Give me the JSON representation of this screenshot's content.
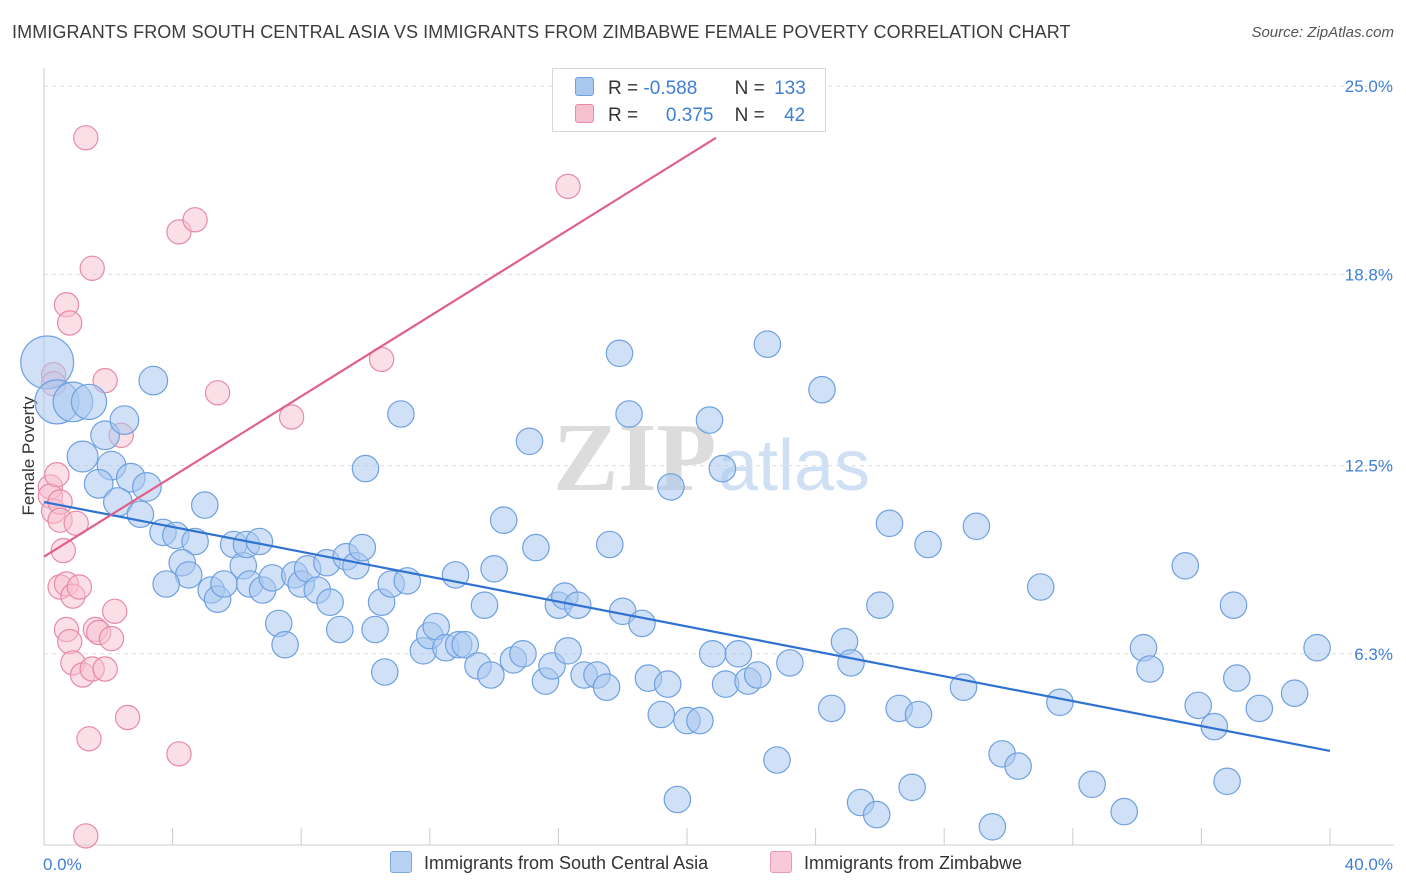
{
  "header": {
    "title": "IMMIGRANTS FROM SOUTH CENTRAL ASIA VS IMMIGRANTS FROM ZIMBABWE FEMALE POVERTY CORRELATION CHART",
    "source": "Source: ZipAtlas.com"
  },
  "watermark": {
    "zip": "ZIP",
    "atlas": "atlas"
  },
  "legend": {
    "r_label": "R =",
    "n_label": "N =",
    "series": [
      {
        "r": "-0.588",
        "n": "133",
        "color": "#a9c8f0",
        "border": "#6fa0e0"
      },
      {
        "r": "0.375",
        "n": "42",
        "color": "#f7c0d0",
        "border": "#e88aa8"
      }
    ]
  },
  "bottom_legend": [
    {
      "label": "Immigrants from South Central Asia",
      "color": "#b8d2f4",
      "border": "#7aa6e0"
    },
    {
      "label": "Immigrants from Zimbabwe",
      "color": "#f8cad8",
      "border": "#e89ab4"
    }
  ],
  "chart_data": {
    "type": "scatter",
    "ylabel": "Female Poverty",
    "x_tick_labels": [
      "0.0%",
      "40.0%"
    ],
    "y_tick_labels": [
      "25.0%",
      "18.8%",
      "12.5%",
      "6.3%"
    ],
    "y_ticks": [
      25.0,
      18.8,
      12.5,
      6.3
    ],
    "xlim": [
      0,
      40
    ],
    "ylim": [
      0,
      25.6
    ],
    "grid": true,
    "series": [
      {
        "name": "Immigrants from South Central Asia",
        "color": "#a9c8f0",
        "stroke": "#6fa0e0",
        "trend": {
          "x": [
            0,
            40
          ],
          "y": [
            11.3,
            3.1
          ],
          "color": "#2f72d0"
        },
        "points": [
          [
            0.1,
            15.9,
            2.4
          ],
          [
            0.4,
            14.6,
            2.0
          ],
          [
            0.9,
            14.6,
            1.8
          ],
          [
            1.4,
            14.6,
            1.6
          ],
          [
            3.4,
            15.3,
            1.3
          ],
          [
            1.9,
            13.5,
            1.3
          ],
          [
            2.5,
            14.0,
            1.3
          ],
          [
            1.2,
            12.8,
            1.4
          ],
          [
            2.1,
            12.5,
            1.3
          ],
          [
            1.7,
            11.9,
            1.3
          ],
          [
            2.7,
            12.1,
            1.3
          ],
          [
            3.2,
            11.8,
            1.3
          ],
          [
            2.3,
            11.3,
            1.3
          ],
          [
            3.0,
            10.9,
            1.2
          ],
          [
            3.7,
            10.3,
            1.2
          ],
          [
            4.1,
            10.2,
            1.2
          ],
          [
            4.7,
            10.0,
            1.2
          ],
          [
            5.0,
            11.2,
            1.2
          ],
          [
            4.3,
            9.3,
            1.2
          ],
          [
            4.5,
            8.9,
            1.2
          ],
          [
            3.8,
            8.6,
            1.2
          ],
          [
            5.2,
            8.4,
            1.2
          ],
          [
            5.4,
            8.1,
            1.2
          ],
          [
            5.6,
            8.6,
            1.2
          ],
          [
            5.9,
            9.9,
            1.2
          ],
          [
            6.2,
            9.2,
            1.2
          ],
          [
            6.3,
            9.9,
            1.2
          ],
          [
            6.7,
            10.0,
            1.2
          ],
          [
            6.4,
            8.6,
            1.2
          ],
          [
            6.8,
            8.4,
            1.2
          ],
          [
            7.1,
            8.8,
            1.2
          ],
          [
            7.3,
            7.3,
            1.2
          ],
          [
            7.5,
            6.6,
            1.2
          ],
          [
            7.8,
            8.9,
            1.2
          ],
          [
            8.0,
            8.6,
            1.2
          ],
          [
            8.2,
            9.1,
            1.2
          ],
          [
            8.5,
            8.4,
            1.2
          ],
          [
            8.8,
            9.3,
            1.2
          ],
          [
            8.9,
            8.0,
            1.2
          ],
          [
            9.2,
            7.1,
            1.2
          ],
          [
            9.4,
            9.5,
            1.2
          ],
          [
            9.7,
            9.2,
            1.2
          ],
          [
            9.9,
            9.8,
            1.2
          ],
          [
            10.0,
            12.4,
            1.2
          ],
          [
            10.3,
            7.1,
            1.2
          ],
          [
            10.5,
            8.0,
            1.2
          ],
          [
            10.6,
            5.7,
            1.2
          ],
          [
            10.8,
            8.6,
            1.2
          ],
          [
            11.1,
            14.2,
            1.2
          ],
          [
            11.3,
            8.7,
            1.2
          ],
          [
            11.8,
            6.4,
            1.2
          ],
          [
            12.0,
            6.9,
            1.2
          ],
          [
            12.2,
            7.2,
            1.2
          ],
          [
            12.5,
            6.5,
            1.2
          ],
          [
            12.8,
            8.9,
            1.2
          ],
          [
            12.9,
            6.6,
            1.2
          ],
          [
            13.1,
            6.6,
            1.2
          ],
          [
            13.5,
            5.9,
            1.2
          ],
          [
            13.9,
            5.6,
            1.2
          ],
          [
            13.7,
            7.9,
            1.2
          ],
          [
            14.0,
            9.1,
            1.2
          ],
          [
            14.3,
            10.7,
            1.2
          ],
          [
            14.6,
            6.1,
            1.2
          ],
          [
            14.9,
            6.3,
            1.2
          ],
          [
            15.1,
            13.3,
            1.2
          ],
          [
            15.3,
            9.8,
            1.2
          ],
          [
            15.6,
            5.4,
            1.2
          ],
          [
            15.8,
            5.9,
            1.2
          ],
          [
            16.0,
            7.9,
            1.2
          ],
          [
            16.2,
            8.2,
            1.2
          ],
          [
            16.3,
            6.4,
            1.2
          ],
          [
            16.6,
            7.9,
            1.2
          ],
          [
            16.8,
            5.6,
            1.2
          ],
          [
            17.2,
            5.6,
            1.2
          ],
          [
            17.5,
            5.2,
            1.2
          ],
          [
            17.6,
            9.9,
            1.2
          ],
          [
            17.9,
            16.2,
            1.2
          ],
          [
            18.0,
            7.7,
            1.2
          ],
          [
            18.2,
            14.2,
            1.2
          ],
          [
            18.6,
            7.3,
            1.2
          ],
          [
            18.8,
            5.5,
            1.2
          ],
          [
            19.2,
            4.3,
            1.2
          ],
          [
            19.4,
            5.3,
            1.2
          ],
          [
            19.5,
            11.8,
            1.2
          ],
          [
            19.7,
            1.5,
            1.2
          ],
          [
            20.0,
            4.1,
            1.2
          ],
          [
            20.4,
            4.1,
            1.2
          ],
          [
            20.7,
            14.0,
            1.2
          ],
          [
            20.8,
            6.3,
            1.2
          ],
          [
            21.1,
            12.4,
            1.2
          ],
          [
            21.2,
            5.3,
            1.2
          ],
          [
            21.6,
            6.3,
            1.2
          ],
          [
            21.9,
            5.4,
            1.2
          ],
          [
            22.2,
            5.6,
            1.2
          ],
          [
            22.5,
            16.5,
            1.2
          ],
          [
            22.8,
            2.8,
            1.2
          ],
          [
            23.2,
            6.0,
            1.2
          ],
          [
            24.2,
            15.0,
            1.2
          ],
          [
            24.5,
            4.5,
            1.2
          ],
          [
            24.9,
            6.7,
            1.2
          ],
          [
            25.1,
            6.0,
            1.2
          ],
          [
            25.4,
            1.4,
            1.2
          ],
          [
            25.9,
            1.0,
            1.2
          ],
          [
            26.0,
            7.9,
            1.2
          ],
          [
            26.3,
            10.6,
            1.2
          ],
          [
            26.6,
            4.5,
            1.2
          ],
          [
            27.0,
            1.9,
            1.2
          ],
          [
            27.2,
            4.3,
            1.2
          ],
          [
            27.5,
            9.9,
            1.2
          ],
          [
            28.6,
            5.2,
            1.2
          ],
          [
            29.0,
            10.5,
            1.2
          ],
          [
            29.5,
            0.6,
            1.2
          ],
          [
            29.8,
            3.0,
            1.2
          ],
          [
            30.3,
            2.6,
            1.2
          ],
          [
            31.0,
            8.5,
            1.2
          ],
          [
            31.6,
            4.7,
            1.2
          ],
          [
            32.6,
            2.0,
            1.2
          ],
          [
            33.6,
            1.1,
            1.2
          ],
          [
            34.2,
            6.5,
            1.2
          ],
          [
            34.4,
            5.8,
            1.2
          ],
          [
            35.5,
            9.2,
            1.2
          ],
          [
            35.9,
            4.6,
            1.2
          ],
          [
            36.4,
            3.9,
            1.2
          ],
          [
            36.8,
            2.1,
            1.2
          ],
          [
            37.0,
            7.9,
            1.2
          ],
          [
            37.1,
            5.5,
            1.2
          ],
          [
            37.8,
            4.5,
            1.2
          ],
          [
            38.9,
            5.0,
            1.2
          ],
          [
            39.6,
            6.5,
            1.2
          ]
        ]
      },
      {
        "name": "Immigrants from Zimbabwe",
        "color": "#f7c0d0",
        "stroke": "#e88aa8",
        "trend": {
          "x": [
            0,
            20.9
          ],
          "y": [
            9.5,
            23.3
          ],
          "color": "#e0608a"
        },
        "points": [
          [
            0.3,
            15.5,
            1.1
          ],
          [
            0.3,
            15.2,
            1.1
          ],
          [
            0.2,
            11.8,
            1.1
          ],
          [
            0.2,
            11.5,
            1.1
          ],
          [
            0.3,
            11.0,
            1.1
          ],
          [
            0.4,
            12.2,
            1.1
          ],
          [
            0.5,
            11.3,
            1.1
          ],
          [
            0.5,
            8.5,
            1.1
          ],
          [
            0.5,
            10.7,
            1.1
          ],
          [
            0.6,
            9.7,
            1.1
          ],
          [
            0.7,
            17.8,
            1.1
          ],
          [
            0.8,
            17.2,
            1.1
          ],
          [
            0.7,
            8.6,
            1.1
          ],
          [
            0.7,
            7.1,
            1.1
          ],
          [
            0.8,
            6.7,
            1.1
          ],
          [
            0.9,
            6.0,
            1.1
          ],
          [
            0.9,
            8.2,
            1.1
          ],
          [
            1.0,
            10.6,
            1.1
          ],
          [
            1.1,
            8.5,
            1.1
          ],
          [
            1.2,
            5.6,
            1.1
          ],
          [
            1.3,
            23.3,
            1.1
          ],
          [
            1.3,
            0.3,
            1.1
          ],
          [
            1.4,
            3.5,
            1.1
          ],
          [
            1.5,
            19.0,
            1.1
          ],
          [
            1.5,
            5.8,
            1.1
          ],
          [
            1.6,
            7.1,
            1.1
          ],
          [
            1.7,
            7.0,
            1.1
          ],
          [
            1.9,
            15.3,
            1.1
          ],
          [
            1.9,
            5.8,
            1.1
          ],
          [
            2.1,
            6.8,
            1.1
          ],
          [
            2.2,
            7.7,
            1.1
          ],
          [
            2.4,
            13.5,
            1.1
          ],
          [
            2.6,
            4.2,
            1.1
          ],
          [
            4.2,
            3.0,
            1.1
          ],
          [
            4.2,
            20.2,
            1.1
          ],
          [
            4.7,
            20.6,
            1.1
          ],
          [
            5.4,
            14.9,
            1.1
          ],
          [
            7.7,
            14.1,
            1.1
          ],
          [
            10.5,
            16.0,
            1.1
          ],
          [
            16.3,
            21.7,
            1.1
          ]
        ]
      }
    ]
  }
}
